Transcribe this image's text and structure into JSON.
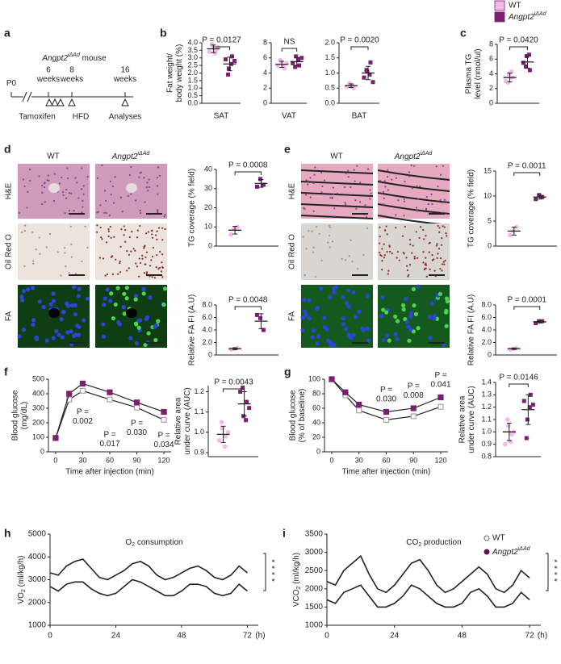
{
  "legend": {
    "items": [
      {
        "name": "WT",
        "color": "#f5b8ea"
      },
      {
        "name": {
          "text": "Angpt2",
          "sup": "iΔAd",
          "italic": true
        },
        "color": "#7b1f70"
      }
    ]
  },
  "panel_labels": [
    "a",
    "b",
    "c",
    "d",
    "e",
    "f",
    "g",
    "h",
    "i"
  ],
  "timeline": {
    "title": {
      "text": "Angpt2",
      "sup": "iΔAd",
      "italic": true,
      "rest": " mouse"
    },
    "ticks": [
      [
        "P0"
      ],
      [
        "6",
        "weeks"
      ],
      [
        "8",
        "weeks"
      ],
      [
        "16",
        "weeks"
      ]
    ],
    "events": [
      "Tamoxifen",
      "HFD",
      "Analyses"
    ]
  },
  "micrographs": [
    {
      "columns": [
        "WT",
        {
          "text": "Angpt2",
          "sup": "iΔAd",
          "italic": true
        }
      ],
      "rows": [
        "H&E",
        "Oil Red O",
        "FA"
      ]
    },
    {
      "columns": [
        "WT",
        {
          "text": "Angpt2",
          "sup": "iΔAd",
          "italic": true
        }
      ],
      "rows": [
        "H&E",
        "Oil Red O",
        "FA"
      ]
    }
  ],
  "chart_data": [
    {
      "type": "dot",
      "ylabel": [
        "Fat weight/",
        "body weight (%)"
      ],
      "xlabel": "SAT",
      "ylim": [
        0,
        4
      ],
      "yticks": [
        {
          "value": 0,
          "label": "0.0"
        },
        0.5,
        {
          "value": 1,
          "label": "1.0"
        },
        1.5,
        {
          "value": 2,
          "label": "2.0"
        },
        2.5,
        {
          "value": 3,
          "label": "3.0"
        },
        3.5,
        {
          "value": 4,
          "label": "4.0"
        }
      ],
      "groups": [
        {
          "color": "#f5b8ea",
          "values": [
            3.4,
            3.8,
            3.5,
            3.9,
            3.3,
            3.7
          ],
          "mean": 3.6,
          "sd": 0.25
        },
        {
          "color": "#7b1f70",
          "values": [
            2.9,
            2.3,
            3.1,
            1.9,
            2.6,
            2.8
          ],
          "mean": 2.6,
          "sd": 0.45
        }
      ],
      "annotation": "P = 0.0127"
    },
    {
      "type": "dot",
      "xlabel": "VAT",
      "ylim": [
        0,
        8
      ],
      "yticks": [
        0,
        2,
        4,
        6,
        8
      ],
      "groups": [
        {
          "color": "#f5b8ea",
          "values": [
            5.0,
            5.5,
            4.6,
            5.7,
            4.8,
            5.3
          ],
          "mean": 5.15,
          "sd": 0.4
        },
        {
          "color": "#7b1f70",
          "values": [
            5.3,
            6.2,
            5.0,
            4.8,
            5.8,
            6.0
          ],
          "mean": 5.5,
          "sd": 0.55
        }
      ],
      "annotation": "NS"
    },
    {
      "type": "dot",
      "xlabel": "BAT",
      "ylim": [
        0,
        2
      ],
      "yticks": [
        {
          "value": 0,
          "label": "0.0"
        },
        0.5,
        {
          "value": 1,
          "label": "1.0"
        },
        1.5,
        {
          "value": 2,
          "label": "2.0"
        }
      ],
      "groups": [
        {
          "color": "#f5b8ea",
          "values": [
            0.55,
            0.62,
            0.5,
            0.66,
            0.58
          ],
          "mean": 0.58,
          "sd": 0.06
        },
        {
          "color": "#7b1f70",
          "values": [
            0.85,
            1.05,
            1.35,
            1.1,
            0.95,
            0.7
          ],
          "mean": 1.0,
          "sd": 0.22
        }
      ],
      "annotation": "P = 0.0020"
    },
    {
      "type": "dot",
      "ylabel": [
        "Plasma TG",
        "level (nmol/ul)"
      ],
      "ylim": [
        0,
        8
      ],
      "yticks": [
        0,
        2,
        4,
        6,
        8
      ],
      "groups": [
        {
          "color": "#f5b8ea",
          "values": [
            3.0,
            4.0,
            3.5,
            2.8,
            4.3
          ],
          "mean": 3.5,
          "sd": 0.6
        },
        {
          "color": "#7b1f70",
          "values": [
            5.5,
            6.4,
            4.5,
            5.0,
            6.6
          ],
          "mean": 5.6,
          "sd": 0.85
        }
      ],
      "annotation": "P = 0.0420"
    },
    {
      "type": "dot",
      "ylabel": "TG coverage (% field)",
      "ylim": [
        0,
        40
      ],
      "yticks": [
        0,
        10,
        20,
        30,
        40
      ],
      "groups": [
        {
          "color": "#f5b8ea",
          "values": [
            6,
            9,
            10
          ],
          "mean": 8.3,
          "sd": 2
        },
        {
          "color": "#7b1f70",
          "values": [
            31,
            35,
            32
          ],
          "mean": 32.7,
          "sd": 2
        }
      ],
      "annotation": "P = 0.0008"
    },
    {
      "type": "dot",
      "ylabel": "Relative FA FI (A.U)",
      "ylim": [
        0,
        8
      ],
      "yticks": [
        0,
        {
          "value": 2,
          "label": "2.0"
        },
        {
          "value": 4,
          "label": "4.0"
        },
        {
          "value": 6,
          "label": "6.0"
        },
        {
          "value": 8,
          "label": "8.0"
        }
      ],
      "groups": [
        {
          "color": "#f5b8ea",
          "values": [
            0.9,
            1.0,
            1.1
          ],
          "mean": 1.0,
          "sd": 0.15
        },
        {
          "color": "#7b1f70",
          "values": [
            6.4,
            5.9,
            4.0
          ],
          "mean": 5.4,
          "sd": 1.2
        }
      ],
      "annotation": "P = 0.0048"
    },
    {
      "type": "dot",
      "ylabel": "TG coverage (% field)",
      "ylim": [
        0,
        15
      ],
      "yticks": [
        0,
        5,
        10,
        15
      ],
      "groups": [
        {
          "color": "#f5b8ea",
          "values": [
            2.2,
            3.0,
            3.8
          ],
          "mean": 3.0,
          "sd": 0.8
        },
        {
          "color": "#7b1f70",
          "values": [
            9.4,
            10.2,
            9.8
          ],
          "mean": 9.8,
          "sd": 0.4
        }
      ],
      "annotation": "P = 0.0011"
    },
    {
      "type": "dot",
      "ylabel": "Relative FA FI (A.U)",
      "ylim": [
        0,
        8
      ],
      "yticks": [
        0,
        {
          "value": 2,
          "label": "2.0"
        },
        {
          "value": 4,
          "label": "4.0"
        },
        {
          "value": 6,
          "label": "6.0"
        },
        {
          "value": 8,
          "label": "8.0"
        }
      ],
      "groups": [
        {
          "color": "#f5b8ea",
          "values": [
            0.9,
            1.0,
            1.1
          ],
          "mean": 1.0,
          "sd": 0.12
        },
        {
          "color": "#7b1f70",
          "values": [
            5.1,
            5.4,
            5.4
          ],
          "mean": 5.3,
          "sd": 0.17
        }
      ],
      "annotation": "P = 0.0001"
    },
    {
      "type": "line",
      "ylabel": [
        "Blood glucose",
        "(mg/dL)"
      ],
      "xlabel": "Time after injection (min)",
      "x": [
        0,
        15,
        30,
        60,
        90,
        120
      ],
      "xlim": [
        -8,
        128
      ],
      "xticks": [
        0,
        30,
        60,
        90,
        120
      ],
      "ylim": [
        0,
        500
      ],
      "yticks": [
        0,
        100,
        200,
        300,
        400,
        500
      ],
      "series": [
        {
          "color": "#b79ab3",
          "marker": "open",
          "values": [
            95,
            360,
            420,
            360,
            305,
            220
          ],
          "errors": [
            5,
            10,
            12,
            10,
            10,
            10
          ]
        },
        {
          "color": "#7b1f70",
          "marker": "filled",
          "values": [
            95,
            400,
            470,
            410,
            340,
            275
          ],
          "errors": [
            5,
            10,
            8,
            10,
            12,
            15
          ]
        }
      ],
      "annotations": [
        {
          "x": 30,
          "text": [
            "P =",
            "0.002"
          ]
        },
        {
          "x": 60,
          "text": [
            "P =",
            "0.017"
          ]
        },
        {
          "x": 90,
          "text": [
            "P =",
            "0.030"
          ]
        },
        {
          "x": 120,
          "text": [
            "P =",
            "0.034"
          ]
        }
      ]
    },
    {
      "type": "dot",
      "ylabel": [
        "Relative area",
        "under curve (AUC)"
      ],
      "ylim": [
        0.88,
        1.23
      ],
      "yticks": [
        0.9,
        {
          "value": 1,
          "label": "1.0"
        },
        1.1,
        1.2
      ],
      "groups": [
        {
          "color": "#f5b8ea",
          "values": [
            0.96,
            1.02,
            0.98,
            1.05,
            0.93,
            1.0
          ],
          "mean": 0.99,
          "sd": 0.04
        },
        {
          "color": "#7b1f70",
          "values": [
            1.2,
            1.08,
            1.15,
            1.22,
            1.06,
            1.12
          ],
          "mean": 1.14,
          "sd": 0.06
        }
      ],
      "annotation": "P = 0.0043"
    },
    {
      "type": "line",
      "ylabel": [
        "Blood glucose",
        "(% of baseline)"
      ],
      "xlabel": "Time after injection (min)",
      "x": [
        0,
        15,
        30,
        60,
        90,
        120
      ],
      "xlim": [
        -8,
        128
      ],
      "xticks": [
        0,
        30,
        60,
        90,
        120
      ],
      "ylim": [
        0,
        100
      ],
      "yticks": [
        0,
        20,
        40,
        60,
        80,
        100
      ],
      "series": [
        {
          "color": "#b79ab3",
          "marker": "open",
          "values": [
            100,
            78,
            57,
            44,
            49,
            62
          ],
          "errors": [
            0,
            3,
            3,
            2,
            2,
            3
          ]
        },
        {
          "color": "#7b1f70",
          "marker": "filled",
          "values": [
            100,
            82,
            65,
            55,
            60,
            75
          ],
          "errors": [
            0,
            3,
            3,
            3,
            3,
            4
          ]
        }
      ],
      "annotations": [
        {
          "x": 60,
          "text": [
            "P =",
            "0.030"
          ]
        },
        {
          "x": 90,
          "text": [
            "P =",
            "0.008"
          ]
        },
        {
          "x": 120,
          "text": [
            "P =",
            "0.041"
          ]
        }
      ]
    },
    {
      "type": "dot",
      "ylabel": [
        "Relative area",
        "under curve (AUC)"
      ],
      "ylim": [
        0.8,
        1.4
      ],
      "yticks": [
        0.8,
        0.9,
        {
          "value": 1,
          "label": "1.0"
        },
        1.1,
        1.2,
        1.3,
        1.4
      ],
      "groups": [
        {
          "color": "#f5b8ea",
          "values": [
            0.9,
            1.05,
            0.98,
            1.1,
            0.92,
            1.0
          ],
          "mean": 1.0,
          "sd": 0.07
        },
        {
          "color": "#7b1f70",
          "values": [
            1.25,
            1.1,
            1.3,
            0.95,
            1.2,
            1.22
          ],
          "mean": 1.18,
          "sd": 0.12
        }
      ],
      "annotation": "P = 0.0146"
    },
    {
      "type": "timeseries",
      "title": {
        "text": "O",
        "sub": "2",
        "rest": " consumption"
      },
      "ylabel": {
        "text": "VO",
        "sub": "2",
        "rest": " (ml/kg/h)"
      },
      "x": [
        0,
        3,
        6,
        9,
        12,
        15,
        18,
        21,
        24,
        27,
        30,
        33,
        36,
        39,
        42,
        45,
        48,
        51,
        54,
        57,
        60,
        63,
        66,
        69,
        72
      ],
      "xlim": [
        0,
        76
      ],
      "xticks": [
        0,
        24,
        48,
        72
      ],
      "xunit": "(h)",
      "ylim": [
        1000,
        5000
      ],
      "yticks": [
        1000,
        2000,
        3000,
        4000,
        5000
      ],
      "series": [
        {
          "color": "#f5b0e6",
          "values": [
            3300,
            3200,
            3600,
            3800,
            3900,
            3500,
            3100,
            3000,
            3200,
            3400,
            3700,
            3800,
            3600,
            3200,
            3000,
            3100,
            3300,
            3500,
            3600,
            3400,
            3100,
            3000,
            3200,
            3600,
            3300
          ]
        },
        {
          "color": "#6b0d5c",
          "values": [
            2700,
            2500,
            2800,
            2900,
            2900,
            2600,
            2400,
            2300,
            2400,
            2700,
            3000,
            2900,
            2700,
            2500,
            2300,
            2300,
            2500,
            2800,
            2800,
            2700,
            2400,
            2300,
            2400,
            2800,
            2500
          ]
        }
      ],
      "significance": "****"
    },
    {
      "type": "timeseries",
      "title": {
        "text": "CO",
        "sub": "2",
        "rest": " production"
      },
      "ylabel": {
        "text": "VCO",
        "sub": "2",
        "rest": " (ml/kg/h)"
      },
      "x": [
        0,
        3,
        6,
        9,
        12,
        15,
        18,
        21,
        24,
        27,
        30,
        33,
        36,
        39,
        42,
        45,
        48,
        51,
        54,
        57,
        60,
        63,
        66,
        69,
        72
      ],
      "xlim": [
        0,
        76
      ],
      "xticks": [
        0,
        24,
        48,
        72
      ],
      "xunit": "(h)",
      "ylim": [
        1000,
        3500
      ],
      "yticks": [
        1000,
        1500,
        2000,
        2500,
        3000,
        3500
      ],
      "series": [
        {
          "name": "WT",
          "color": "#f5b0e6",
          "values": [
            2200,
            2100,
            2500,
            2700,
            2900,
            2400,
            2000,
            1900,
            2100,
            2400,
            2700,
            2800,
            2500,
            2100,
            1900,
            2000,
            2200,
            2400,
            2600,
            2400,
            2000,
            1900,
            2100,
            2500,
            2300
          ]
        },
        {
          "name": {
            "text": "Angpt2",
            "sup": "iΔAd",
            "italic": true
          },
          "color": "#6b0d5c",
          "values": [
            1700,
            1600,
            1900,
            2000,
            2100,
            1800,
            1500,
            1500,
            1600,
            1800,
            2100,
            2000,
            1800,
            1600,
            1500,
            1500,
            1600,
            1900,
            2000,
            1800,
            1500,
            1500,
            1600,
            1900,
            1700
          ]
        }
      ],
      "significance": "****"
    }
  ]
}
